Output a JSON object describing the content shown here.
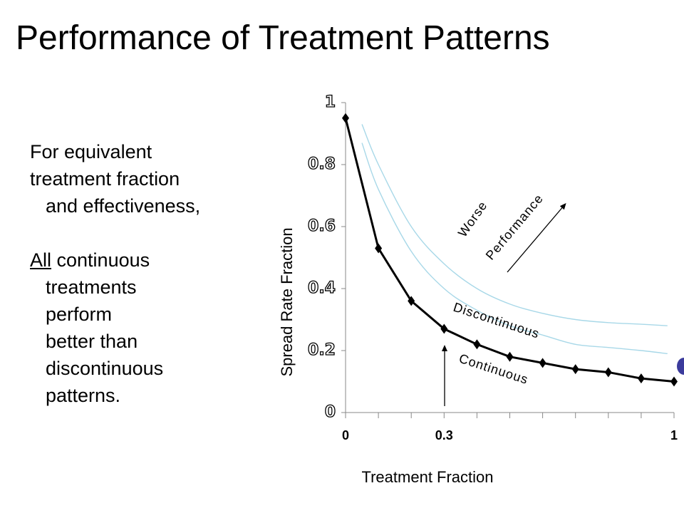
{
  "slide": {
    "title": "Performance of Treatment Patterns",
    "text_lines": [
      "For equivalent",
      "treatment fraction",
      "and effectiveness,",
      "All",
      " continuous",
      "treatments",
      "perform",
      "better than",
      "discontinuous",
      "patterns."
    ]
  },
  "colors": {
    "data_line": "#000000",
    "comparison_curves": "#a8d8e8",
    "blue_marker": "#3b3b9c"
  },
  "chart_data": {
    "type": "line",
    "xlabel": "Treatment Fraction",
    "ylabel": "Spread Rate Fraction",
    "xlim": [
      0,
      1
    ],
    "ylim": [
      0,
      1
    ],
    "x_tick_labels": [
      "0",
      "0.3",
      "1"
    ],
    "y_tick_labels": [
      "0",
      "0.2",
      "0.4",
      "0.6",
      "0.8",
      "1"
    ],
    "grid": false,
    "series": [
      {
        "name": "Continuous",
        "x": [
          0,
          0.1,
          0.2,
          0.3,
          0.4,
          0.5,
          0.6,
          0.7,
          0.8,
          0.9,
          1.0
        ],
        "y": [
          0.95,
          0.53,
          0.36,
          0.27,
          0.22,
          0.18,
          0.16,
          0.14,
          0.13,
          0.11,
          0.1
        ]
      },
      {
        "name": "Discontinuous",
        "x": [
          0.05,
          0.1,
          0.2,
          0.3,
          0.4,
          0.5,
          0.6,
          0.7,
          0.8,
          0.9,
          0.98
        ],
        "y": [
          0.87,
          0.72,
          0.52,
          0.4,
          0.33,
          0.28,
          0.25,
          0.22,
          0.21,
          0.2,
          0.19
        ]
      },
      {
        "x": [
          0.05,
          0.1,
          0.2,
          0.3,
          0.4,
          0.5,
          0.6,
          0.7,
          0.8,
          0.9,
          0.98
        ],
        "y": [
          0.93,
          0.8,
          0.6,
          0.48,
          0.4,
          0.35,
          0.32,
          0.3,
          0.29,
          0.285,
          0.28
        ]
      }
    ],
    "annotations": {
      "worse": "Worse",
      "performance": "Performance",
      "discontinuous": "Discontinuous",
      "continuous": "Continuous"
    }
  }
}
